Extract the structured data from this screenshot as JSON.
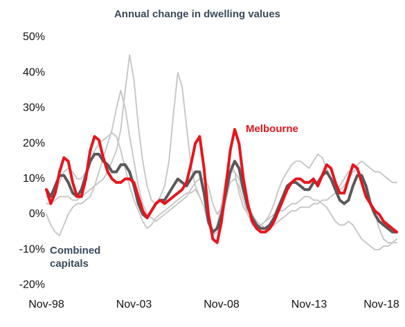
{
  "chart_data": {
    "type": "line",
    "title": "Annual change in dwelling values",
    "x": [
      "Nov-98",
      "Feb-99",
      "May-99",
      "Aug-99",
      "Nov-99",
      "Feb-00",
      "May-00",
      "Aug-00",
      "Nov-00",
      "Feb-01",
      "May-01",
      "Aug-01",
      "Nov-01",
      "Feb-02",
      "May-02",
      "Aug-02",
      "Nov-02",
      "Feb-03",
      "May-03",
      "Aug-03",
      "Nov-03",
      "Feb-04",
      "May-04",
      "Aug-04",
      "Nov-04",
      "Feb-05",
      "May-05",
      "Aug-05",
      "Nov-05",
      "Feb-06",
      "May-06",
      "Aug-06",
      "Nov-06",
      "Feb-07",
      "May-07",
      "Aug-07",
      "Nov-07",
      "Feb-08",
      "May-08",
      "Aug-08",
      "Nov-08",
      "Feb-09",
      "May-09",
      "Aug-09",
      "Nov-09",
      "Feb-10",
      "May-10",
      "Aug-10",
      "Nov-10",
      "Feb-11",
      "May-11",
      "Aug-11",
      "Nov-11",
      "Feb-12",
      "May-12",
      "Aug-12",
      "Nov-12",
      "Feb-13",
      "May-13",
      "Aug-13",
      "Nov-13",
      "Feb-14",
      "May-14",
      "Aug-14",
      "Nov-14",
      "Feb-15",
      "May-15",
      "Aug-15",
      "Nov-15",
      "Feb-16",
      "May-16",
      "Aug-16",
      "Nov-16",
      "Feb-17",
      "May-17",
      "Aug-17",
      "Nov-17",
      "Feb-18",
      "May-18",
      "Aug-18",
      "Nov-18"
    ],
    "xticks": [
      "Nov-98",
      "Nov-03",
      "Nov-08",
      "Nov-13",
      "Nov-18"
    ],
    "ylim": [
      -20,
      50
    ],
    "yticks": [
      {
        "value": -20,
        "label": "-20%"
      },
      {
        "value": -10,
        "label": "-10%"
      },
      {
        "value": 0,
        "label": "0%"
      },
      {
        "value": 10,
        "label": "10%"
      },
      {
        "value": 20,
        "label": "20%"
      },
      {
        "value": 30,
        "label": "30%"
      },
      {
        "value": 40,
        "label": "40%"
      },
      {
        "value": 50,
        "label": "50%"
      }
    ],
    "series": [
      {
        "color": "#c8c8c8",
        "values": [
          3,
          3,
          4,
          5,
          5,
          5,
          4,
          4,
          5,
          6,
          7,
          8,
          9,
          10,
          12,
          15,
          18,
          24,
          35,
          45,
          38,
          25,
          15,
          8,
          4,
          3,
          5,
          8,
          15,
          28,
          40,
          36,
          25,
          14,
          8,
          5,
          2,
          -3,
          -6,
          -5,
          -2,
          4,
          9,
          10,
          8,
          4,
          0,
          -3,
          -4,
          -3,
          -2,
          -1,
          0,
          1,
          1,
          2,
          3,
          3,
          4,
          5,
          5,
          4,
          4,
          3,
          2,
          0,
          -2,
          -3,
          -3,
          -2,
          -3,
          -5,
          -7,
          -8,
          -9,
          -10,
          -10,
          -9,
          -9,
          -8,
          -8
        ]
      },
      {
        "color": "#c8c8c8",
        "values": [
          5,
          4,
          6,
          9,
          12,
          13,
          12,
          10,
          10,
          12,
          15,
          18,
          20,
          21,
          22,
          23,
          22,
          18,
          13,
          8,
          4,
          1,
          -2,
          -4,
          -3,
          -1,
          0,
          1,
          2,
          3,
          4,
          5,
          6,
          6,
          7,
          5,
          2,
          -3,
          -6,
          -3,
          3,
          10,
          14,
          12,
          6,
          2,
          0,
          -2,
          -3,
          -3,
          -2,
          0,
          3,
          7,
          10,
          12,
          14,
          15,
          15,
          14,
          13,
          15,
          17,
          16,
          13,
          10,
          8,
          7,
          8,
          10,
          12,
          13,
          11,
          8,
          4,
          0,
          -4,
          -7,
          -8,
          -8,
          -7
        ]
      },
      {
        "color": "#c8c8c8",
        "values": [
          0,
          -3,
          -5,
          -6,
          -3,
          0,
          2,
          3,
          3,
          4,
          5,
          8,
          12,
          16,
          20,
          24,
          30,
          35,
          30,
          22,
          15,
          8,
          3,
          0,
          -1,
          -2,
          -1,
          0,
          1,
          2,
          3,
          4,
          5,
          7,
          9,
          10,
          10,
          8,
          3,
          0,
          2,
          7,
          12,
          12,
          10,
          6,
          3,
          0,
          -2,
          -3,
          -4,
          -4,
          -3,
          -2,
          -1,
          0,
          1,
          1,
          2,
          2,
          2,
          3,
          3,
          4,
          4,
          5,
          6,
          8,
          10,
          12,
          13,
          14,
          15,
          14,
          13,
          12,
          12,
          11,
          10,
          9,
          9
        ]
      },
      {
        "name": "Combined capitals",
        "color": "#595959",
        "values": [
          7,
          5,
          8,
          11,
          11,
          9,
          6,
          5,
          7,
          11,
          15,
          17,
          17,
          15,
          14,
          12,
          12,
          14,
          14,
          12,
          8,
          3,
          0,
          -1,
          1,
          3,
          4,
          4,
          6,
          8,
          10,
          9,
          8,
          10,
          12,
          12,
          6,
          -2,
          -5,
          -4,
          0,
          6,
          12,
          15,
          13,
          7,
          2,
          -1,
          -3,
          -4,
          -4,
          -3,
          -1,
          2,
          5,
          8,
          9,
          9,
          8,
          7,
          7,
          9,
          9,
          11,
          12,
          10,
          7,
          4,
          3,
          4,
          8,
          11,
          11,
          8,
          3,
          0,
          -2,
          -3,
          -4,
          -5,
          -5
        ]
      },
      {
        "name": "Melbourne",
        "color": "#e8141c",
        "values": [
          7,
          3,
          6,
          12,
          16,
          15,
          9,
          5,
          5,
          10,
          18,
          22,
          21,
          16,
          12,
          10,
          9,
          9,
          10,
          10,
          9,
          5,
          1,
          -1,
          1,
          3,
          4,
          3,
          4,
          5,
          6,
          7,
          9,
          14,
          20,
          22,
          13,
          0,
          -7,
          -8,
          -2,
          8,
          18,
          24,
          20,
          10,
          3,
          -2,
          -4,
          -5,
          -5,
          -4,
          -2,
          1,
          4,
          7,
          9,
          10,
          10,
          9,
          9,
          10,
          8,
          11,
          14,
          13,
          9,
          6,
          6,
          10,
          14,
          13,
          9,
          5,
          3,
          1,
          0,
          -2,
          -3,
          -4,
          -5
        ]
      }
    ]
  }
}
